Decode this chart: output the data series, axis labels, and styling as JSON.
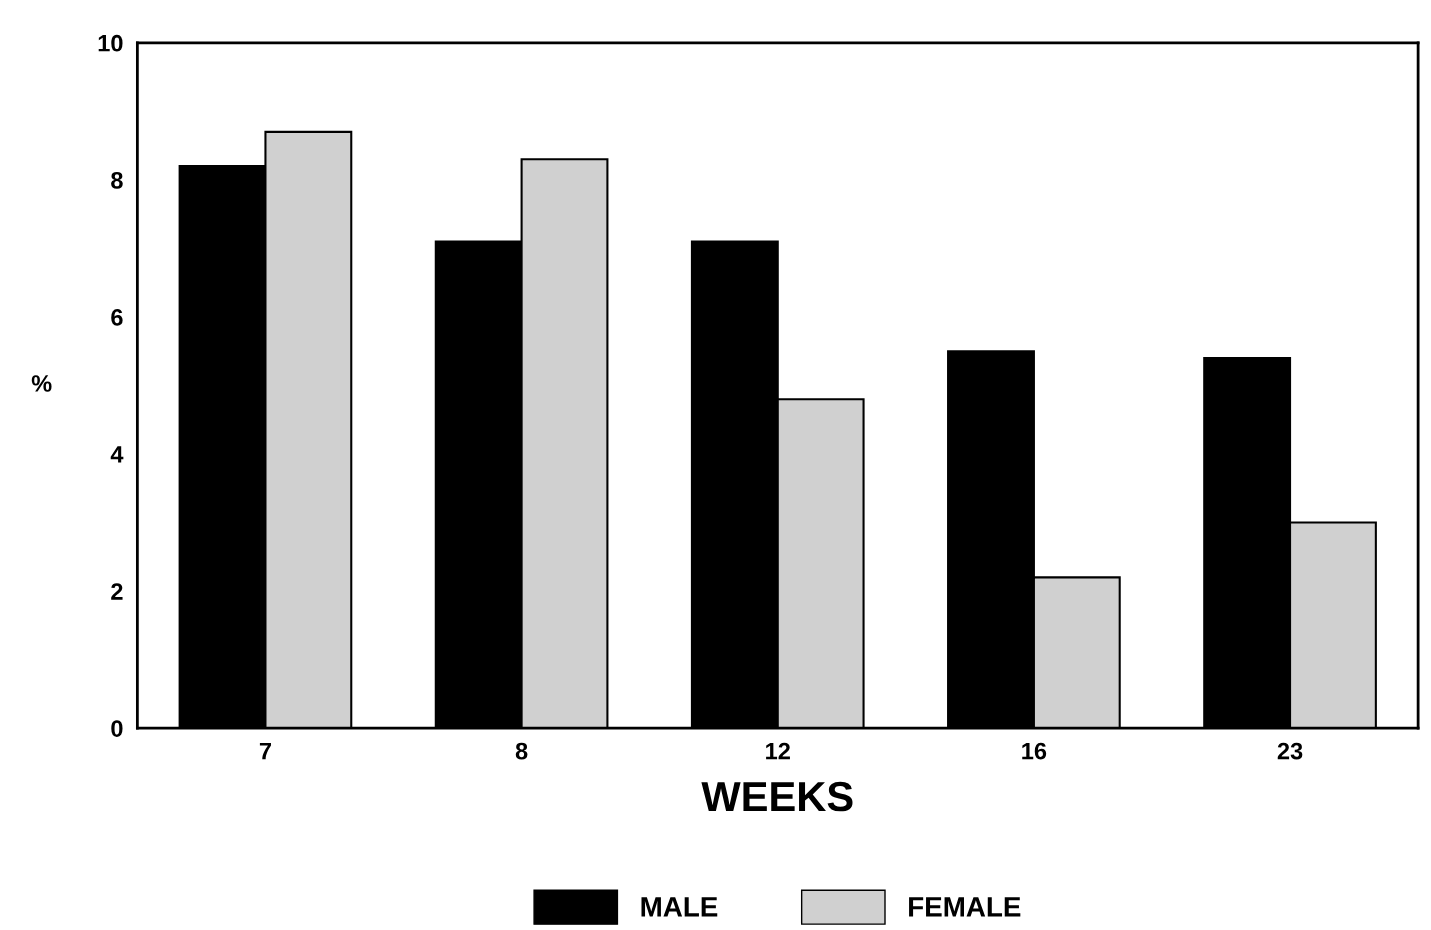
{
  "chart_data": {
    "type": "bar",
    "xlabel": "WEEKS",
    "ylabel": "%",
    "categories": [
      "7",
      "8",
      "12",
      "16",
      "23"
    ],
    "series": [
      {
        "name": "MALE",
        "color": "#000000",
        "values": [
          8.2,
          7.1,
          7.1,
          5.5,
          5.4
        ]
      },
      {
        "name": "FEMALE",
        "color": "#d0d0d0",
        "values": [
          8.7,
          8.3,
          4.8,
          2.2,
          3.0
        ]
      }
    ],
    "ylim": [
      0,
      10
    ],
    "yticks": [
      0,
      2,
      4,
      6,
      8,
      10
    ],
    "grid": false,
    "legend": "bottom"
  }
}
